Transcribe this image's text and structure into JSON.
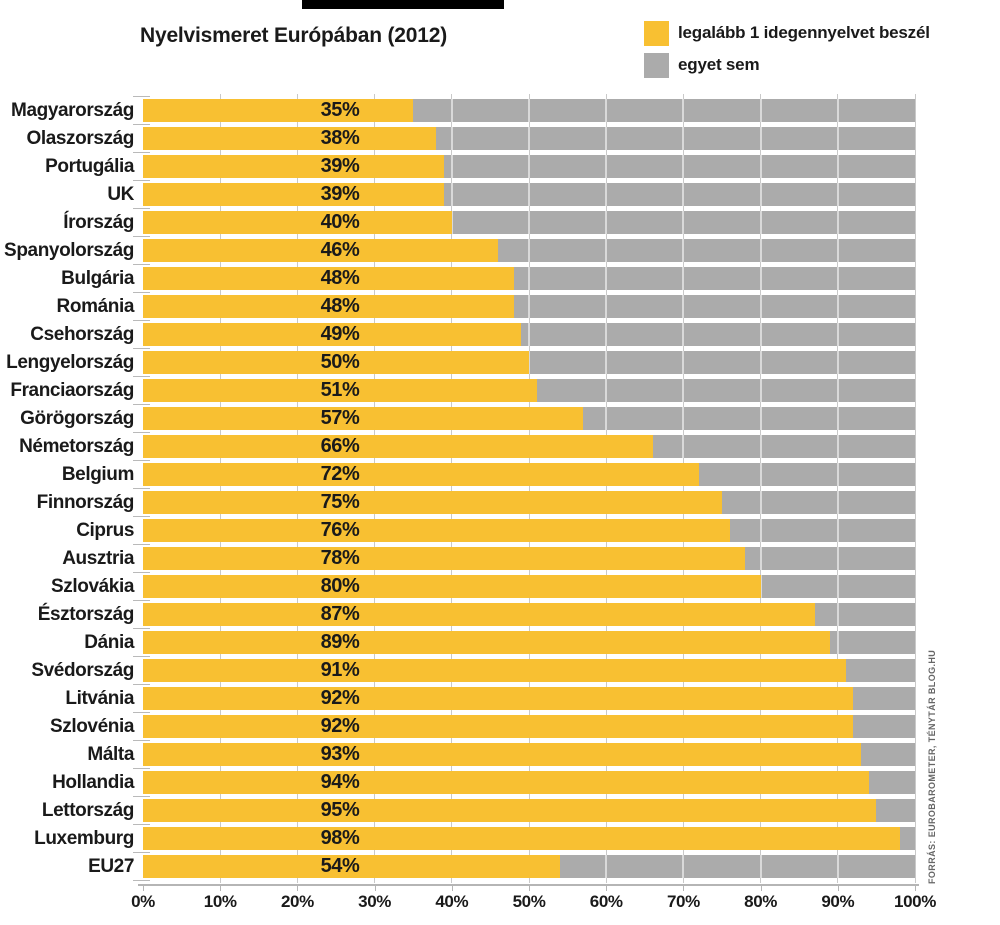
{
  "title": "Nyelvismeret Európában (2012)",
  "legend": [
    {
      "label": "legalább 1 idegennyelvet beszél",
      "color": "#F8C032"
    },
    {
      "label": "egyet sem",
      "color": "#ABABAB"
    }
  ],
  "source_note": "FORRÁS: EUROBAROMETER, TÉNYTÁR BLOG.HU",
  "colors": {
    "bar_yellow": "#F8C032",
    "bar_gray": "#ABABAB",
    "grid": "#C9C9C9",
    "axis": "#B5B5B5",
    "text": "#1A1A1A",
    "header_bar": "#000000"
  },
  "chart_data": {
    "type": "bar",
    "orientation": "horizontal",
    "stacked": true,
    "title": "Nyelvismeret Európában (2012)",
    "categories": [
      "Magyarország",
      "Olaszország",
      "Portugália",
      "UK",
      "Írország",
      "Spanyolország",
      "Bulgária",
      "Románia",
      "Csehország",
      "Lengyelország",
      "Franciaország",
      "Görögország",
      "Németország",
      "Belgium",
      "Finnország",
      "Ciprus",
      "Ausztria",
      "Szlovákia",
      "Észtország",
      "Dánia",
      "Svédország",
      "Litvánia",
      "Szlovénia",
      "Málta",
      "Hollandia",
      "Lettország",
      "Luxemburg",
      "EU27"
    ],
    "series": [
      {
        "name": "legalább 1 idegennyelvet beszél",
        "color": "#F8C032",
        "values": [
          35,
          38,
          39,
          39,
          40,
          46,
          48,
          48,
          49,
          50,
          51,
          57,
          66,
          72,
          75,
          76,
          78,
          80,
          87,
          89,
          91,
          92,
          92,
          93,
          94,
          95,
          98,
          54
        ]
      },
      {
        "name": "egyet sem",
        "color": "#ABABAB",
        "values": [
          65,
          62,
          61,
          61,
          60,
          54,
          52,
          52,
          51,
          50,
          49,
          43,
          34,
          28,
          25,
          24,
          22,
          20,
          13,
          11,
          9,
          8,
          8,
          7,
          6,
          5,
          2,
          46
        ]
      }
    ],
    "value_labels": [
      "35%",
      "38%",
      "39%",
      "39%",
      "40%",
      "46%",
      "48%",
      "48%",
      "49%",
      "50%",
      "51%",
      "57%",
      "66%",
      "72%",
      "75%",
      "76%",
      "78%",
      "80%",
      "87%",
      "89%",
      "91%",
      "92%",
      "92%",
      "93%",
      "94%",
      "95%",
      "98%",
      "54%"
    ],
    "x_ticks": [
      "0%",
      "10%",
      "20%",
      "30%",
      "40%",
      "50%",
      "60%",
      "70%",
      "80%",
      "90%",
      "100%"
    ],
    "xlim": [
      0,
      100
    ],
    "grid": true,
    "legend_position": "top-right"
  }
}
